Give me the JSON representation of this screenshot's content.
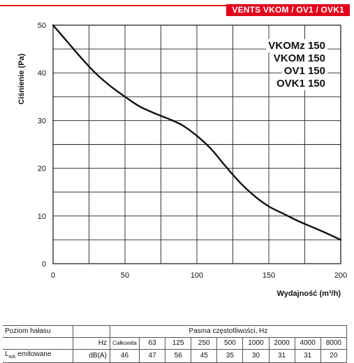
{
  "header": {
    "brand_tag": "VENTS VKOM / OV1 / OVK1"
  },
  "chart_data": {
    "type": "line",
    "title": "",
    "xlabel": "Wydajność (m³/h)",
    "ylabel": "Ciśnienie (Pa)",
    "xlim": [
      0,
      200
    ],
    "ylim": [
      0,
      50
    ],
    "xticks": [
      0,
      50,
      100,
      150,
      200
    ],
    "yticks": [
      0,
      10,
      20,
      30,
      40,
      50
    ],
    "grid": true,
    "series": [
      {
        "x": [
          0,
          10,
          20,
          30,
          40,
          50,
          60,
          70,
          80,
          90,
          100,
          110,
          120,
          130,
          140,
          150,
          160,
          170,
          180,
          190,
          200
        ],
        "y": [
          50,
          46.5,
          43,
          39.8,
          37.2,
          35,
          33,
          31.6,
          30.4,
          29,
          26.8,
          24,
          20.4,
          17,
          14.2,
          12,
          10.5,
          9,
          7.7,
          6.4,
          5
        ]
      }
    ],
    "annotations": [
      "VKOMz 150",
      "VKOM 150",
      "OV1 150",
      "OVK1 150"
    ]
  },
  "table": {
    "row1_label": "Poziom hałasu",
    "freq_header": "Pasma częstotliwości, Hz",
    "hz_label": "Hz",
    "total_label": "Całkowita",
    "bands": [
      "63",
      "125",
      "250",
      "500",
      "1000",
      "2000",
      "4000",
      "8000"
    ],
    "row_label_main": "L",
    "row_label_sub": "wA",
    "row_label_rest": " emitowane",
    "unit": "dB(A)",
    "total_value": "46",
    "values": [
      "47",
      "56",
      "45",
      "35",
      "30",
      "31",
      "31",
      "20"
    ]
  }
}
